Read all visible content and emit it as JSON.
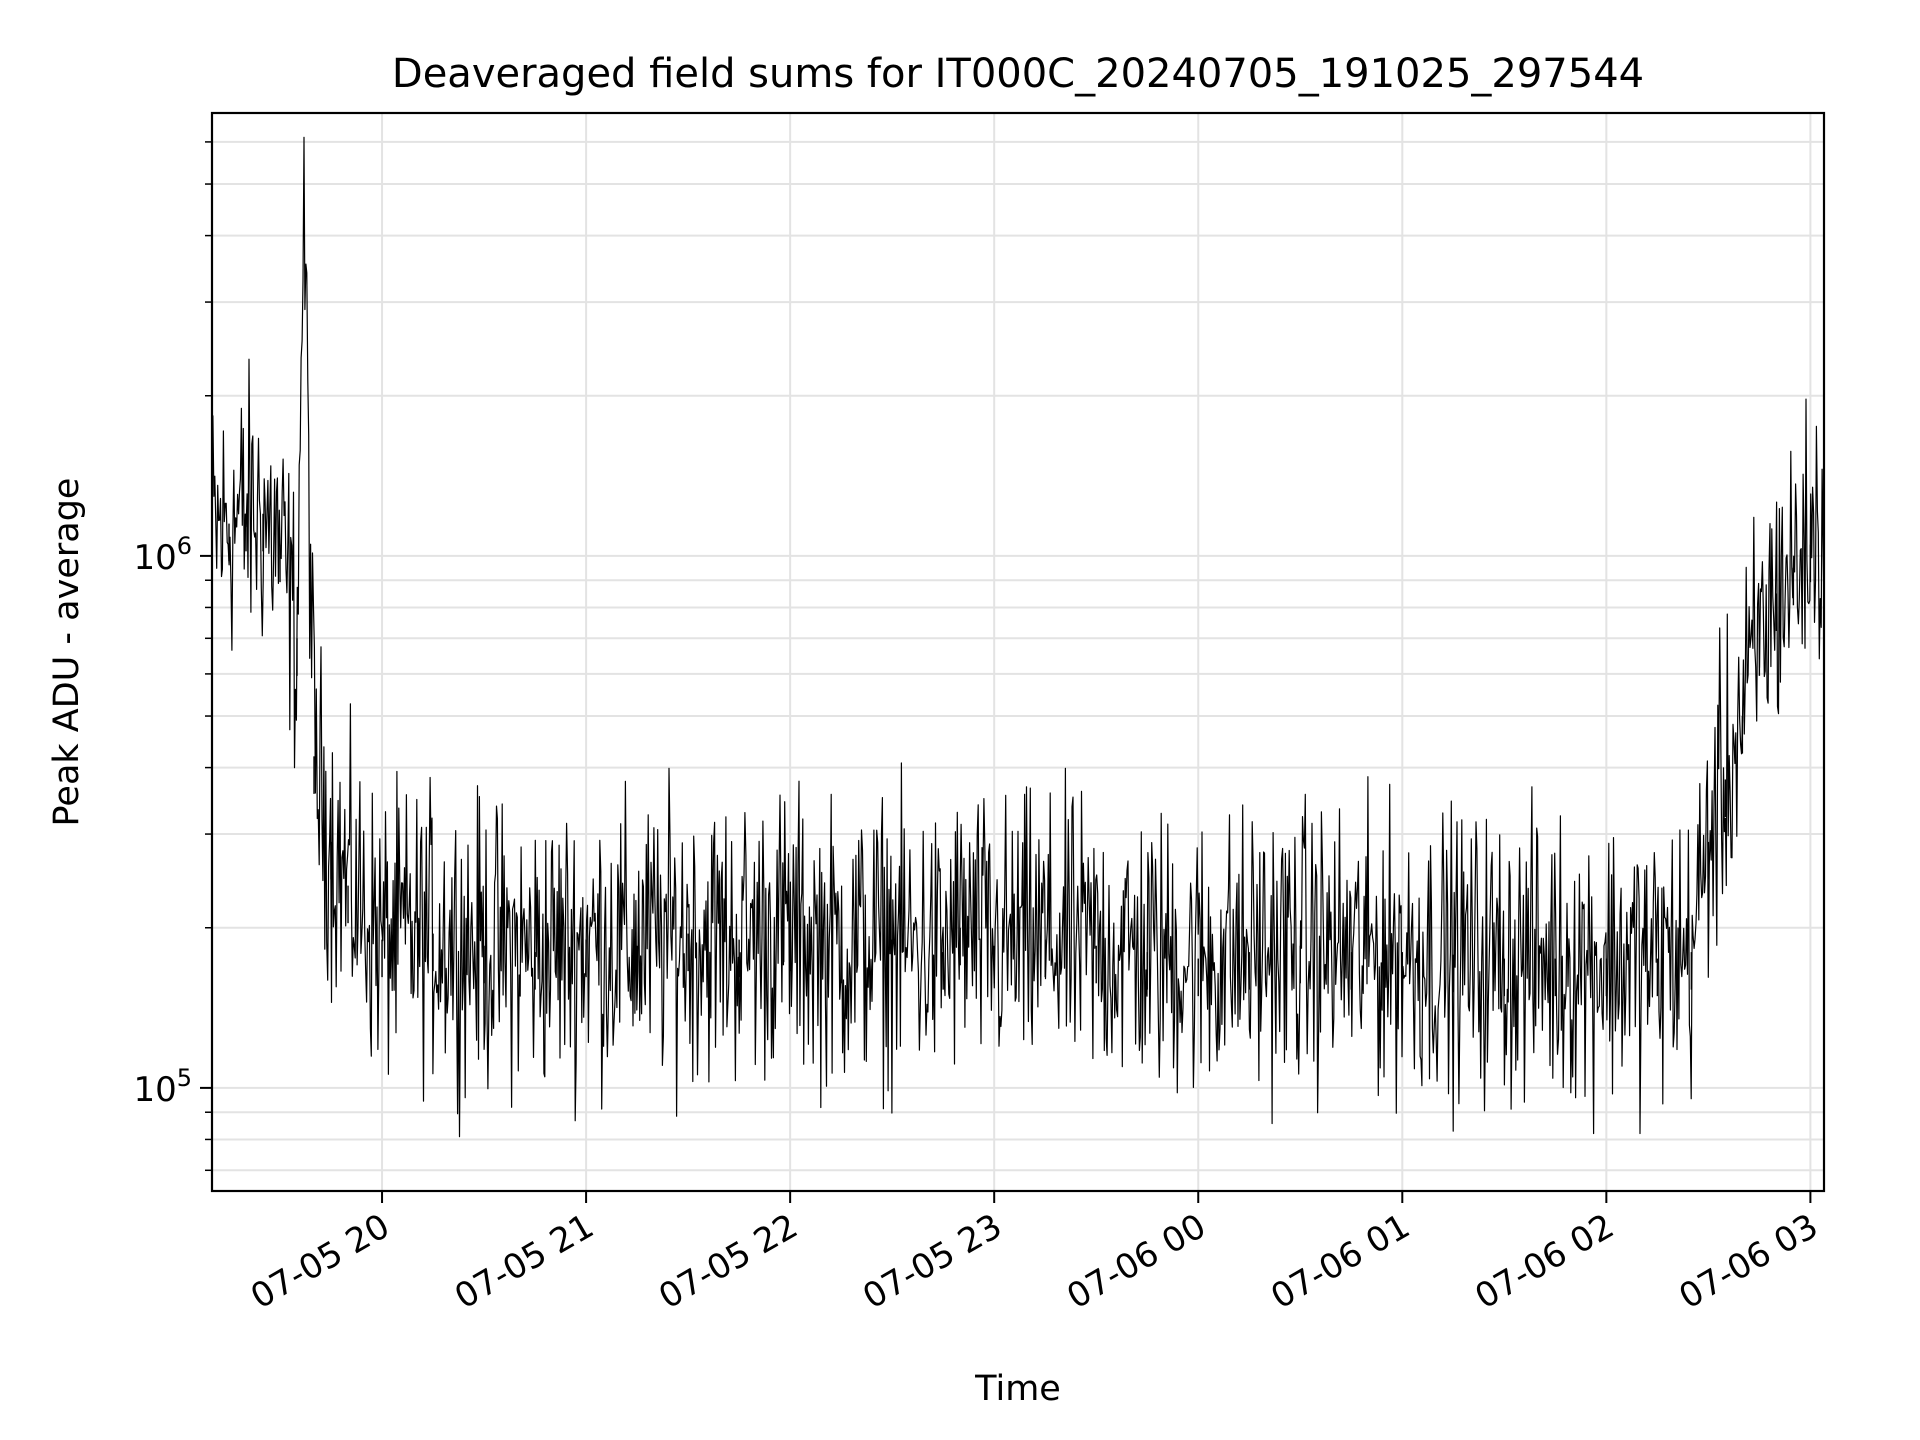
{
  "chart_data": {
    "type": "line",
    "title": "Deaveraged field sums for IT000C_20240705_191025_297544",
    "xlabel": "Time",
    "ylabel": "Peak ADU - average",
    "yscale": "log",
    "grid": true,
    "line_color": "#000000",
    "xlim": [
      "2024-07-05 19:10",
      "2024-07-06 03:04"
    ],
    "ylim": [
      64000,
      6800000
    ],
    "x_ticks": [
      "07-05 20",
      "07-05 21",
      "07-05 22",
      "07-05 23",
      "07-06 00",
      "07-06 01",
      "07-06 02",
      "07-06 03"
    ],
    "y_ticks": [
      {
        "base": "10",
        "exp": "5"
      },
      {
        "base": "10",
        "exp": "6"
      }
    ],
    "series": [
      {
        "x": [
          "2024-07-05 19:10",
          "2024-07-05 19:15",
          "2024-07-05 19:20",
          "2024-07-05 19:25",
          "2024-07-05 19:30",
          "2024-07-05 19:35",
          "2024-07-05 19:37",
          "2024-07-05 19:40",
          "2024-07-05 19:45",
          "2024-07-05 19:50",
          "2024-07-05 20:00",
          "2024-07-05 20:15",
          "2024-07-05 20:30",
          "2024-07-05 20:45",
          "2024-07-05 21:00",
          "2024-07-05 21:15",
          "2024-07-05 21:30",
          "2024-07-05 21:45",
          "2024-07-05 21:58",
          "2024-07-05 22:00",
          "2024-07-05 22:15",
          "2024-07-05 22:30",
          "2024-07-05 22:45",
          "2024-07-05 22:50",
          "2024-07-05 23:00",
          "2024-07-05 23:15",
          "2024-07-05 23:30",
          "2024-07-05 23:45",
          "2024-07-06 00:00",
          "2024-07-06 00:15",
          "2024-07-06 00:30",
          "2024-07-06 00:45",
          "2024-07-06 01:00",
          "2024-07-06 01:15",
          "2024-07-06 01:30",
          "2024-07-06 01:45",
          "2024-07-06 02:00",
          "2024-07-06 02:15",
          "2024-07-06 02:25",
          "2024-07-06 02:30",
          "2024-07-06 02:35",
          "2024-07-06 02:40",
          "2024-07-06 02:45",
          "2024-07-06 02:50",
          "2024-07-06 02:55",
          "2024-07-06 03:00",
          "2024-07-06 03:04"
        ],
        "y": [
          1100000,
          1150000,
          1200000,
          1200000,
          1050000,
          700000,
          4800000,
          420000,
          290000,
          240000,
          190000,
          195000,
          185000,
          180000,
          190000,
          185000,
          195000,
          190000,
          200000,
          195000,
          185000,
          190000,
          180000,
          200000,
          185000,
          190000,
          185000,
          180000,
          175000,
          180000,
          185000,
          180000,
          180000,
          178000,
          175000,
          175000,
          175000,
          175000,
          180000,
          290000,
          380000,
          500000,
          700000,
          850000,
          950000,
          1050000,
          1150000
        ]
      }
    ]
  }
}
